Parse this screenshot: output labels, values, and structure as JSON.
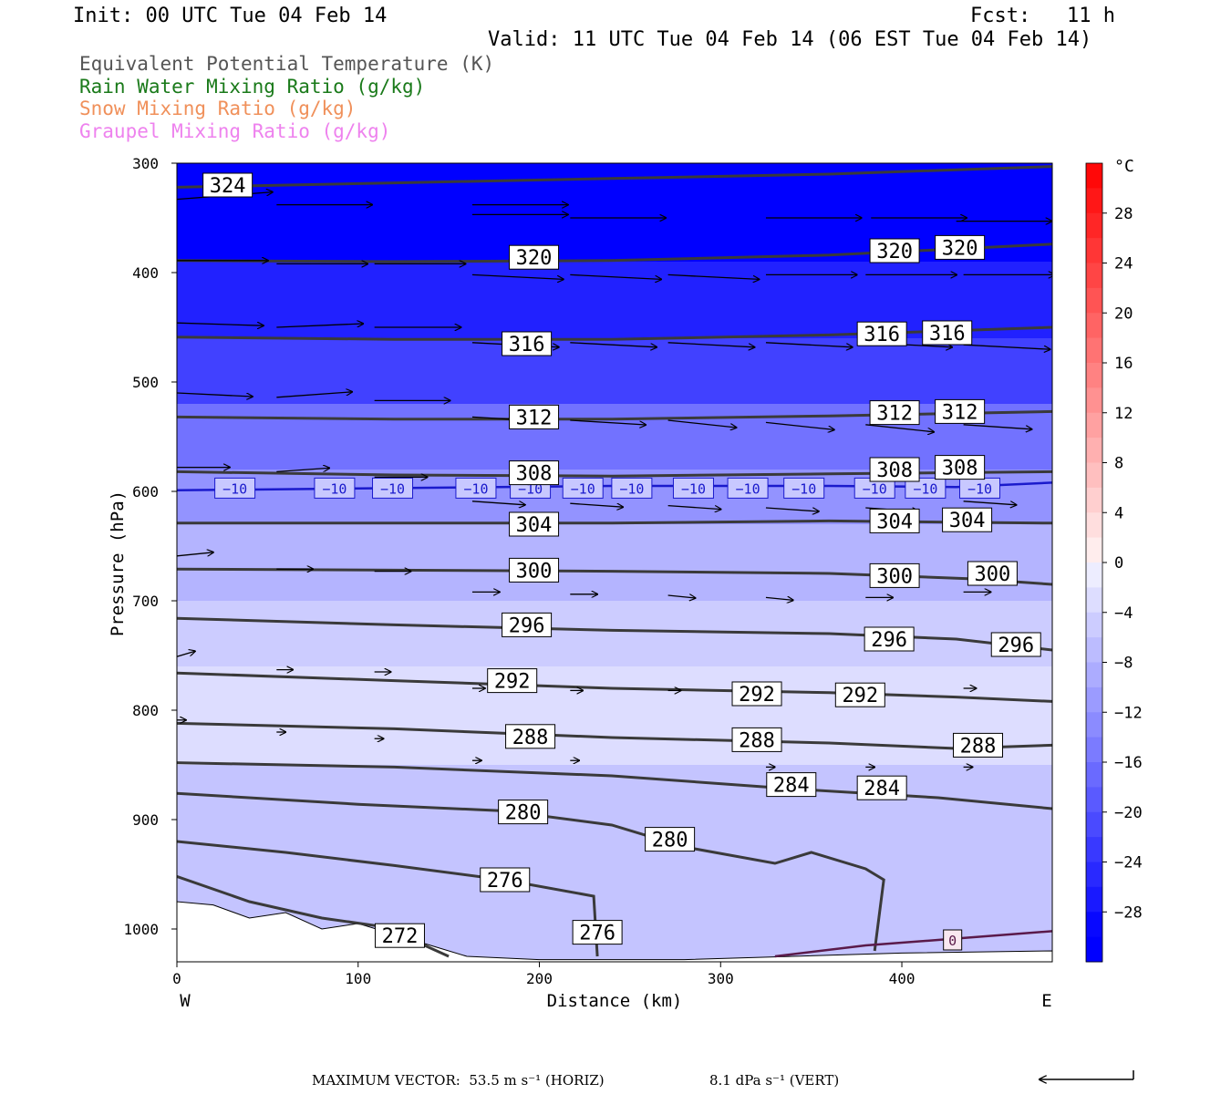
{
  "header": {
    "init": "Init: 00 UTC Tue 04 Feb 14",
    "fcst": "Fcst:   11 h",
    "valid": "Valid: 11 UTC Tue 04 Feb 14 (06 EST Tue 04 Feb 14)"
  },
  "legend": [
    {
      "label": "Equivalent Potential Temperature (K)",
      "color": "#555555"
    },
    {
      "label": "Rain Water Mixing Ratio (g/kg)",
      "color": "#1a7a1a"
    },
    {
      "label": "Snow Mixing Ratio (g/kg)",
      "color": "#f0905a"
    },
    {
      "label": "Graupel Mixing Ratio (g/kg)",
      "color": "#ee82ee"
    }
  ],
  "footer": {
    "max_vector_horiz": "MAXIMUM VECTOR:  53.5 m s⁻¹ (HORIZ)",
    "max_vector_vert": "8.1 dPa s⁻¹ (VERT)"
  },
  "chart_data": {
    "type": "heatmap",
    "title": "",
    "xlabel": "Distance (km)",
    "ylabel": "Pressure (hPa)",
    "xlim": [
      0,
      483
    ],
    "ylim": [
      1030,
      300
    ],
    "x_ticks": [
      0,
      100,
      200,
      300,
      400
    ],
    "y_ticks": [
      300,
      400,
      500,
      600,
      700,
      800,
      900,
      1000
    ],
    "x_end_labels": {
      "left": "W",
      "right": "E"
    },
    "colorbar": {
      "unit": "°C",
      "tick_labels": [
        "28",
        "24",
        "20",
        "16",
        "12",
        "8",
        "4",
        "0",
        "−4",
        "−8",
        "−12",
        "−16",
        "−20",
        "−24",
        "−28"
      ]
    },
    "theta_e_contours": [
      {
        "value": 324,
        "label": "324",
        "points": [
          [
            0,
            322
          ],
          [
            120,
            318
          ],
          [
            240,
            314
          ],
          [
            360,
            310
          ],
          [
            483,
            303
          ]
        ]
      },
      {
        "value": 320,
        "label": "320",
        "points": [
          [
            0,
            389
          ],
          [
            120,
            390
          ],
          [
            240,
            389
          ],
          [
            360,
            384
          ],
          [
            483,
            374
          ]
        ]
      },
      {
        "value": 316,
        "label": "316",
        "points": [
          [
            0,
            459
          ],
          [
            120,
            461
          ],
          [
            240,
            461
          ],
          [
            360,
            457
          ],
          [
            483,
            450
          ]
        ]
      },
      {
        "value": 312,
        "label": "312",
        "points": [
          [
            0,
            532
          ],
          [
            120,
            534
          ],
          [
            240,
            534
          ],
          [
            360,
            531
          ],
          [
            483,
            527
          ]
        ]
      },
      {
        "value": 308,
        "label": "308",
        "points": [
          [
            0,
            582
          ],
          [
            120,
            585
          ],
          [
            240,
            586
          ],
          [
            360,
            584
          ],
          [
            483,
            582
          ]
        ]
      },
      {
        "value": 304,
        "label": "304",
        "points": [
          [
            0,
            629
          ],
          [
            120,
            629
          ],
          [
            240,
            629
          ],
          [
            360,
            627
          ],
          [
            483,
            629
          ]
        ]
      },
      {
        "value": 300,
        "label": "300",
        "points": [
          [
            0,
            671
          ],
          [
            120,
            672
          ],
          [
            240,
            673
          ],
          [
            360,
            675
          ],
          [
            440,
            680
          ],
          [
            483,
            685
          ]
        ]
      },
      {
        "value": 296,
        "label": "296",
        "points": [
          [
            0,
            716
          ],
          [
            120,
            722
          ],
          [
            240,
            727
          ],
          [
            360,
            730
          ],
          [
            430,
            735
          ],
          [
            483,
            745
          ]
        ]
      },
      {
        "value": 292,
        "label": "292",
        "points": [
          [
            0,
            766
          ],
          [
            120,
            773
          ],
          [
            240,
            780
          ],
          [
            360,
            784
          ],
          [
            430,
            788
          ],
          [
            483,
            792
          ]
        ]
      },
      {
        "value": 288,
        "label": "288",
        "points": [
          [
            0,
            812
          ],
          [
            120,
            817
          ],
          [
            240,
            825
          ],
          [
            360,
            830
          ],
          [
            430,
            835
          ],
          [
            483,
            832
          ]
        ]
      },
      {
        "value": 284,
        "label": "284",
        "points": [
          [
            0,
            848
          ],
          [
            120,
            852
          ],
          [
            240,
            860
          ],
          [
            340,
            872
          ],
          [
            420,
            880
          ],
          [
            483,
            890
          ]
        ]
      },
      {
        "value": 280,
        "label": "280",
        "points": [
          [
            0,
            876
          ],
          [
            100,
            886
          ],
          [
            180,
            892
          ],
          [
            240,
            905
          ],
          [
            280,
            925
          ],
          [
            330,
            940
          ],
          [
            350,
            930
          ],
          [
            380,
            945
          ],
          [
            390,
            955
          ],
          [
            385,
            1020
          ]
        ]
      },
      {
        "value": 276,
        "label": "276",
        "points": [
          [
            0,
            920
          ],
          [
            60,
            930
          ],
          [
            120,
            942
          ],
          [
            180,
            955
          ],
          [
            230,
            970
          ],
          [
            232,
            1025
          ]
        ]
      },
      {
        "value": 272,
        "label": "272",
        "points": [
          [
            0,
            952
          ],
          [
            40,
            975
          ],
          [
            80,
            990
          ],
          [
            110,
            997
          ],
          [
            130,
            1010
          ],
          [
            150,
            1025
          ]
        ]
      }
    ],
    "contour_labels": [
      {
        "text": "324",
        "x": 28,
        "p": 320
      },
      {
        "text": "320",
        "x": 197,
        "p": 386
      },
      {
        "text": "320",
        "x": 396,
        "p": 380
      },
      {
        "text": "320",
        "x": 432,
        "p": 377
      },
      {
        "text": "316",
        "x": 193,
        "p": 465
      },
      {
        "text": "316",
        "x": 389,
        "p": 456
      },
      {
        "text": "316",
        "x": 425,
        "p": 455
      },
      {
        "text": "312",
        "x": 197,
        "p": 532
      },
      {
        "text": "312",
        "x": 396,
        "p": 528
      },
      {
        "text": "312",
        "x": 432,
        "p": 527
      },
      {
        "text": "308",
        "x": 197,
        "p": 583
      },
      {
        "text": "308",
        "x": 396,
        "p": 580
      },
      {
        "text": "308",
        "x": 432,
        "p": 578
      },
      {
        "text": "304",
        "x": 197,
        "p": 630
      },
      {
        "text": "304",
        "x": 396,
        "p": 627
      },
      {
        "text": "304",
        "x": 436,
        "p": 626
      },
      {
        "text": "300",
        "x": 197,
        "p": 672
      },
      {
        "text": "300",
        "x": 396,
        "p": 677
      },
      {
        "text": "300",
        "x": 450,
        "p": 675
      },
      {
        "text": "296",
        "x": 193,
        "p": 722
      },
      {
        "text": "296",
        "x": 393,
        "p": 735
      },
      {
        "text": "296",
        "x": 463,
        "p": 740
      },
      {
        "text": "292",
        "x": 185,
        "p": 773
      },
      {
        "text": "292",
        "x": 320,
        "p": 785
      },
      {
        "text": "292",
        "x": 377,
        "p": 786
      },
      {
        "text": "288",
        "x": 195,
        "p": 824
      },
      {
        "text": "288",
        "x": 320,
        "p": 827
      },
      {
        "text": "288",
        "x": 442,
        "p": 832
      },
      {
        "text": "284",
        "x": 339,
        "p": 868
      },
      {
        "text": "284",
        "x": 389,
        "p": 871
      },
      {
        "text": "280",
        "x": 191,
        "p": 893
      },
      {
        "text": "280",
        "x": 272,
        "p": 918
      },
      {
        "text": "276",
        "x": 181,
        "p": 955
      },
      {
        "text": "276",
        "x": 232,
        "p": 1003
      },
      {
        "text": "272",
        "x": 123,
        "p": 1006
      }
    ],
    "isotherm_minus10": {
      "label": "−10",
      "points": [
        [
          0,
          599
        ],
        [
          120,
          597
        ],
        [
          240,
          595
        ],
        [
          360,
          595
        ],
        [
          430,
          596
        ],
        [
          483,
          592
        ]
      ],
      "label_x": [
        32,
        87,
        119,
        165,
        195,
        224,
        251,
        285,
        315,
        346,
        385,
        413,
        443
      ]
    },
    "isotherm_0": {
      "label": "0",
      "points": [
        [
          330,
          1025
        ],
        [
          380,
          1015
        ],
        [
          420,
          1010
        ],
        [
          483,
          1002
        ]
      ],
      "label_x": 428
    },
    "temperature_bands_C": [
      {
        "p_top": 300,
        "p_bot": 390,
        "t": -30
      },
      {
        "p_top": 390,
        "p_bot": 460,
        "t": -26
      },
      {
        "p_top": 460,
        "p_bot": 520,
        "t": -22
      },
      {
        "p_top": 520,
        "p_bot": 580,
        "t": -16
      },
      {
        "p_top": 580,
        "p_bot": 630,
        "t": -12
      },
      {
        "p_top": 630,
        "p_bot": 700,
        "t": -8
      },
      {
        "p_top": 700,
        "p_bot": 760,
        "t": -5
      },
      {
        "p_top": 760,
        "p_bot": 850,
        "t": -3
      },
      {
        "p_top": 850,
        "p_bot": 1030,
        "t": -6
      }
    ],
    "wind_vectors": [
      {
        "x": 0,
        "p": 333,
        "dx": 105,
        "dy": -8
      },
      {
        "x": 55,
        "p": 338,
        "dx": 105,
        "dy": 0
      },
      {
        "x": 163,
        "p": 338,
        "dx": 105,
        "dy": 0
      },
      {
        "x": 163,
        "p": 347,
        "dx": 105,
        "dy": 0
      },
      {
        "x": 217,
        "p": 350,
        "dx": 105,
        "dy": 0
      },
      {
        "x": 325,
        "p": 350,
        "dx": 105,
        "dy": 0
      },
      {
        "x": 383,
        "p": 350,
        "dx": 105,
        "dy": 0
      },
      {
        "x": 430,
        "p": 353,
        "dx": 105,
        "dy": 0
      },
      {
        "x": 0,
        "p": 389,
        "dx": 100,
        "dy": 0
      },
      {
        "x": 55,
        "p": 392,
        "dx": 100,
        "dy": 0
      },
      {
        "x": 109,
        "p": 392,
        "dx": 100,
        "dy": 0
      },
      {
        "x": 163,
        "p": 402,
        "dx": 100,
        "dy": 5
      },
      {
        "x": 217,
        "p": 402,
        "dx": 100,
        "dy": 5
      },
      {
        "x": 271,
        "p": 402,
        "dx": 100,
        "dy": 5
      },
      {
        "x": 325,
        "p": 402,
        "dx": 100,
        "dy": 0
      },
      {
        "x": 380,
        "p": 402,
        "dx": 100,
        "dy": 0
      },
      {
        "x": 434,
        "p": 402,
        "dx": 100,
        "dy": 0
      },
      {
        "x": 0,
        "p": 446,
        "dx": 95,
        "dy": 3
      },
      {
        "x": 55,
        "p": 450,
        "dx": 95,
        "dy": -4
      },
      {
        "x": 109,
        "p": 450,
        "dx": 95,
        "dy": 0
      },
      {
        "x": 163,
        "p": 464,
        "dx": 95,
        "dy": 5
      },
      {
        "x": 217,
        "p": 464,
        "dx": 95,
        "dy": 5
      },
      {
        "x": 271,
        "p": 464,
        "dx": 95,
        "dy": 5
      },
      {
        "x": 325,
        "p": 464,
        "dx": 95,
        "dy": 5
      },
      {
        "x": 380,
        "p": 464,
        "dx": 95,
        "dy": 5
      },
      {
        "x": 434,
        "p": 466,
        "dx": 95,
        "dy": 5
      },
      {
        "x": 0,
        "p": 510,
        "dx": 83,
        "dy": 4
      },
      {
        "x": 55,
        "p": 514,
        "dx": 83,
        "dy": -6
      },
      {
        "x": 109,
        "p": 517,
        "dx": 83,
        "dy": 0
      },
      {
        "x": 163,
        "p": 532,
        "dx": 83,
        "dy": 5
      },
      {
        "x": 217,
        "p": 535,
        "dx": 83,
        "dy": 5
      },
      {
        "x": 271,
        "p": 535,
        "dx": 75,
        "dy": 8
      },
      {
        "x": 325,
        "p": 537,
        "dx": 75,
        "dy": 8
      },
      {
        "x": 380,
        "p": 539,
        "dx": 75,
        "dy": 8
      },
      {
        "x": 434,
        "p": 539,
        "dx": 75,
        "dy": 5
      },
      {
        "x": 0,
        "p": 578,
        "dx": 58,
        "dy": 0
      },
      {
        "x": 55,
        "p": 582,
        "dx": 58,
        "dy": -4
      },
      {
        "x": 109,
        "p": 587,
        "dx": 58,
        "dy": 0
      },
      {
        "x": 163,
        "p": 609,
        "dx": 58,
        "dy": 4
      },
      {
        "x": 217,
        "p": 611,
        "dx": 58,
        "dy": 4
      },
      {
        "x": 271,
        "p": 613,
        "dx": 58,
        "dy": 4
      },
      {
        "x": 325,
        "p": 615,
        "dx": 58,
        "dy": 4
      },
      {
        "x": 380,
        "p": 615,
        "dx": 58,
        "dy": 4
      },
      {
        "x": 434,
        "p": 609,
        "dx": 58,
        "dy": 4
      },
      {
        "x": 0,
        "p": 659,
        "dx": 40,
        "dy": -4
      },
      {
        "x": 55,
        "p": 671,
        "dx": 40,
        "dy": 0
      },
      {
        "x": 109,
        "p": 673,
        "dx": 40,
        "dy": 0
      },
      {
        "x": 163,
        "p": 692,
        "dx": 30,
        "dy": 0
      },
      {
        "x": 217,
        "p": 694,
        "dx": 30,
        "dy": 0
      },
      {
        "x": 271,
        "p": 695,
        "dx": 30,
        "dy": 3
      },
      {
        "x": 325,
        "p": 697,
        "dx": 30,
        "dy": 3
      },
      {
        "x": 380,
        "p": 697,
        "dx": 30,
        "dy": 0
      },
      {
        "x": 434,
        "p": 692,
        "dx": 30,
        "dy": 0
      },
      {
        "x": 0,
        "p": 751,
        "dx": 20,
        "dy": -6
      },
      {
        "x": 55,
        "p": 763,
        "dx": 18,
        "dy": 0
      },
      {
        "x": 109,
        "p": 765,
        "dx": 18,
        "dy": 0
      },
      {
        "x": 163,
        "p": 780,
        "dx": 14,
        "dy": 0
      },
      {
        "x": 217,
        "p": 782,
        "dx": 14,
        "dy": 0
      },
      {
        "x": 271,
        "p": 782,
        "dx": 14,
        "dy": 0
      },
      {
        "x": 325,
        "p": 782,
        "dx": 14,
        "dy": 0
      },
      {
        "x": 380,
        "p": 784,
        "dx": 14,
        "dy": 0
      },
      {
        "x": 434,
        "p": 780,
        "dx": 14,
        "dy": 0
      },
      {
        "x": 0,
        "p": 809,
        "dx": 10,
        "dy": 0
      },
      {
        "x": 55,
        "p": 820,
        "dx": 10,
        "dy": 0
      },
      {
        "x": 109,
        "p": 826,
        "dx": 10,
        "dy": 0
      },
      {
        "x": 163,
        "p": 846,
        "dx": 10,
        "dy": 0
      },
      {
        "x": 217,
        "p": 846,
        "dx": 10,
        "dy": 0
      },
      {
        "x": 325,
        "p": 852,
        "dx": 10,
        "dy": 0
      },
      {
        "x": 380,
        "p": 852,
        "dx": 10,
        "dy": 0
      },
      {
        "x": 434,
        "p": 852,
        "dx": 10,
        "dy": 0
      }
    ]
  }
}
